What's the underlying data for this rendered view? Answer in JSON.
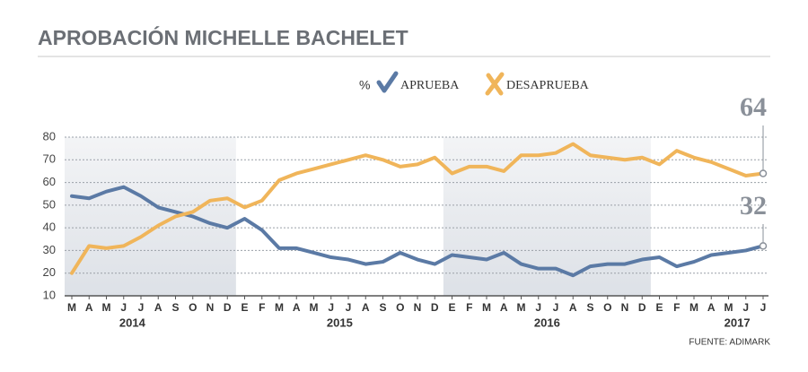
{
  "chart_data": {
    "type": "line",
    "title": "APROBACIÓN MICHELLE BACHELET",
    "legend_title": "%",
    "source": "FUENTE: ADIMARK",
    "categories": [
      "M",
      "A",
      "M",
      "J",
      "J",
      "A",
      "S",
      "O",
      "N",
      "D",
      "E",
      "F",
      "M",
      "A",
      "M",
      "J",
      "J",
      "A",
      "S",
      "O",
      "N",
      "D",
      "E",
      "F",
      "M",
      "A",
      "M",
      "J",
      "J",
      "A",
      "S",
      "O",
      "N",
      "D",
      "E",
      "F",
      "M",
      "A",
      "M",
      "J",
      "J"
    ],
    "years": [
      "2014",
      "2015",
      "2016",
      "2017"
    ],
    "series": [
      {
        "name": "APRUEBA",
        "color": "#5b7aa5",
        "values": [
          54,
          53,
          56,
          58,
          54,
          49,
          47,
          45,
          42,
          40,
          44,
          39,
          31,
          31,
          29,
          27,
          26,
          24,
          25,
          29,
          26,
          24,
          28,
          27,
          26,
          29,
          24,
          22,
          22,
          19,
          23,
          24,
          24,
          26,
          27,
          23,
          25,
          28,
          29,
          30,
          32
        ]
      },
      {
        "name": "DESAPRUEBA",
        "color": "#f0b55a",
        "values": [
          20,
          32,
          31,
          32,
          36,
          41,
          45,
          47,
          52,
          53,
          49,
          52,
          61,
          64,
          66,
          68,
          70,
          72,
          70,
          67,
          68,
          71,
          64,
          67,
          67,
          65,
          72,
          72,
          73,
          77,
          72,
          71,
          70,
          71,
          68,
          74,
          71,
          69,
          66,
          63,
          64
        ]
      }
    ],
    "ylim": [
      10,
      80
    ],
    "yticks": [
      10,
      20,
      30,
      40,
      50,
      60,
      70,
      80
    ],
    "grid": true
  }
}
